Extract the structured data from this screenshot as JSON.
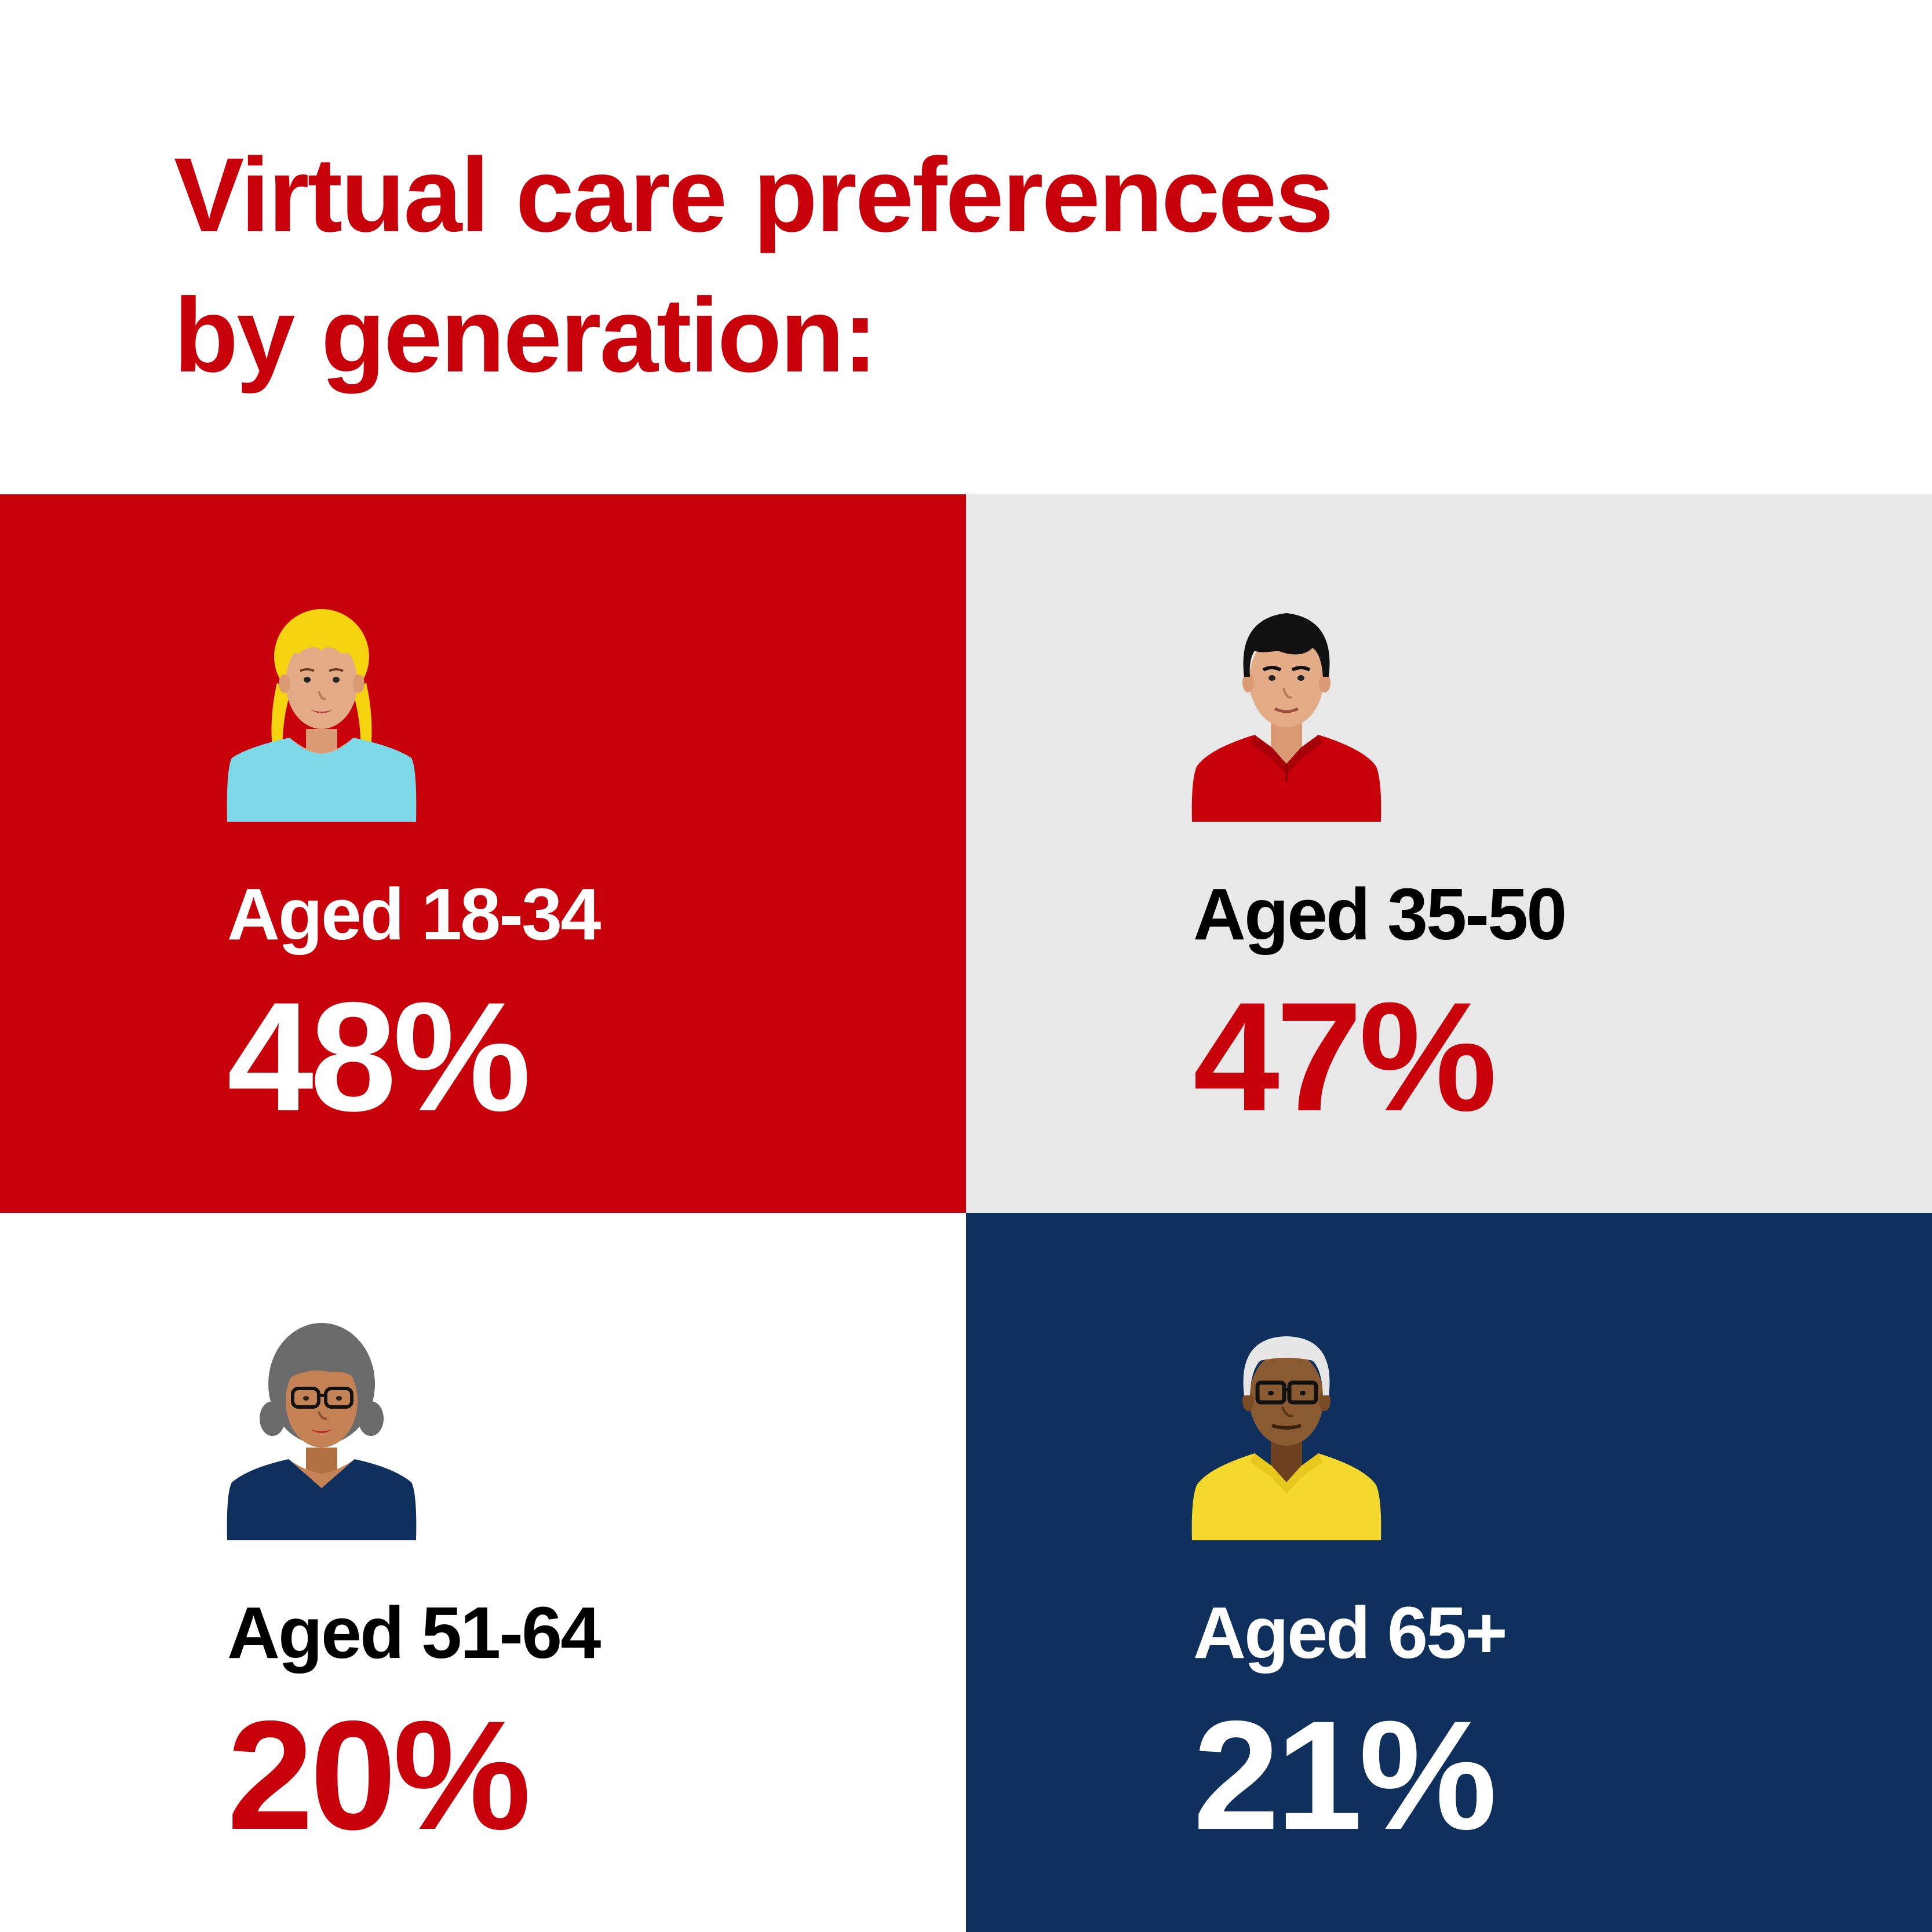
{
  "title": {
    "line1": "Virtual care preferences",
    "line2": "by generation:"
  },
  "colors": {
    "brand_red": "#c8000a",
    "light_gray": "#e8e8e8",
    "navy": "#0f2f5c",
    "white": "#ffffff",
    "black": "#000000"
  },
  "groups": [
    {
      "age_label": "Aged 18-34",
      "percent_label": "48%",
      "percent": 48,
      "background": "#c8000a",
      "label_color": "#ffffff",
      "percent_color": "#ffffff",
      "avatar_icon": "young-woman-blonde-hair-icon"
    },
    {
      "age_label": "Aged 35-50",
      "percent_label": "47%",
      "percent": 47,
      "background": "#e8e8e8",
      "label_color": "#000000",
      "percent_color": "#c8000a",
      "avatar_icon": "man-black-hair-red-shirt-icon"
    },
    {
      "age_label": "Aged 51-64",
      "percent_label": "20%",
      "percent": 20,
      "background": "#ffffff",
      "label_color": "#000000",
      "percent_color": "#c8000a",
      "avatar_icon": "woman-gray-hair-glasses-icon"
    },
    {
      "age_label": "Aged 65+",
      "percent_label": "21%",
      "percent": 21,
      "background": "#0f2f5c",
      "label_color": "#ffffff",
      "percent_color": "#ffffff",
      "avatar_icon": "older-man-white-hair-glasses-icon"
    }
  ]
}
